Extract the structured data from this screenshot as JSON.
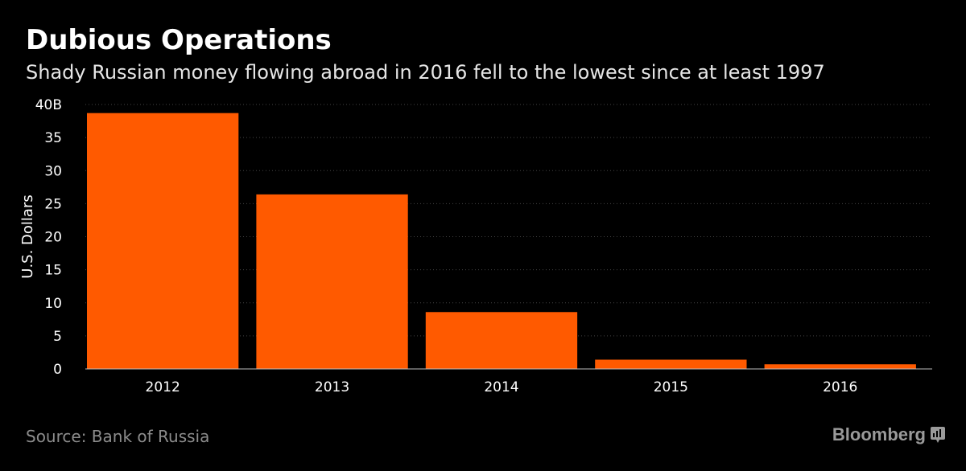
{
  "header": {
    "title": "Dubious Operations",
    "subtitle": "Shady Russian money flowing abroad in 2016 fell to the lowest since at least 1997"
  },
  "footer": {
    "source": "Source: Bank of Russia",
    "brand": "Bloomberg"
  },
  "colors": {
    "bar": "#ff5a00",
    "background": "#000000",
    "grid": "#444444",
    "text": "#ffffff"
  },
  "chart_data": {
    "type": "bar",
    "categories": [
      "2012",
      "2013",
      "2014",
      "2015",
      "2016"
    ],
    "values": [
      38.7,
      26.4,
      8.6,
      1.4,
      0.7
    ],
    "ylabel": "U.S. Dollars",
    "ylim": [
      0,
      40
    ],
    "yticks": [
      0,
      5,
      10,
      15,
      20,
      25,
      30,
      35,
      40
    ],
    "ytick_labels": [
      "0",
      "5",
      "10",
      "15",
      "20",
      "25",
      "30",
      "35",
      "40B"
    ],
    "grid": true
  }
}
